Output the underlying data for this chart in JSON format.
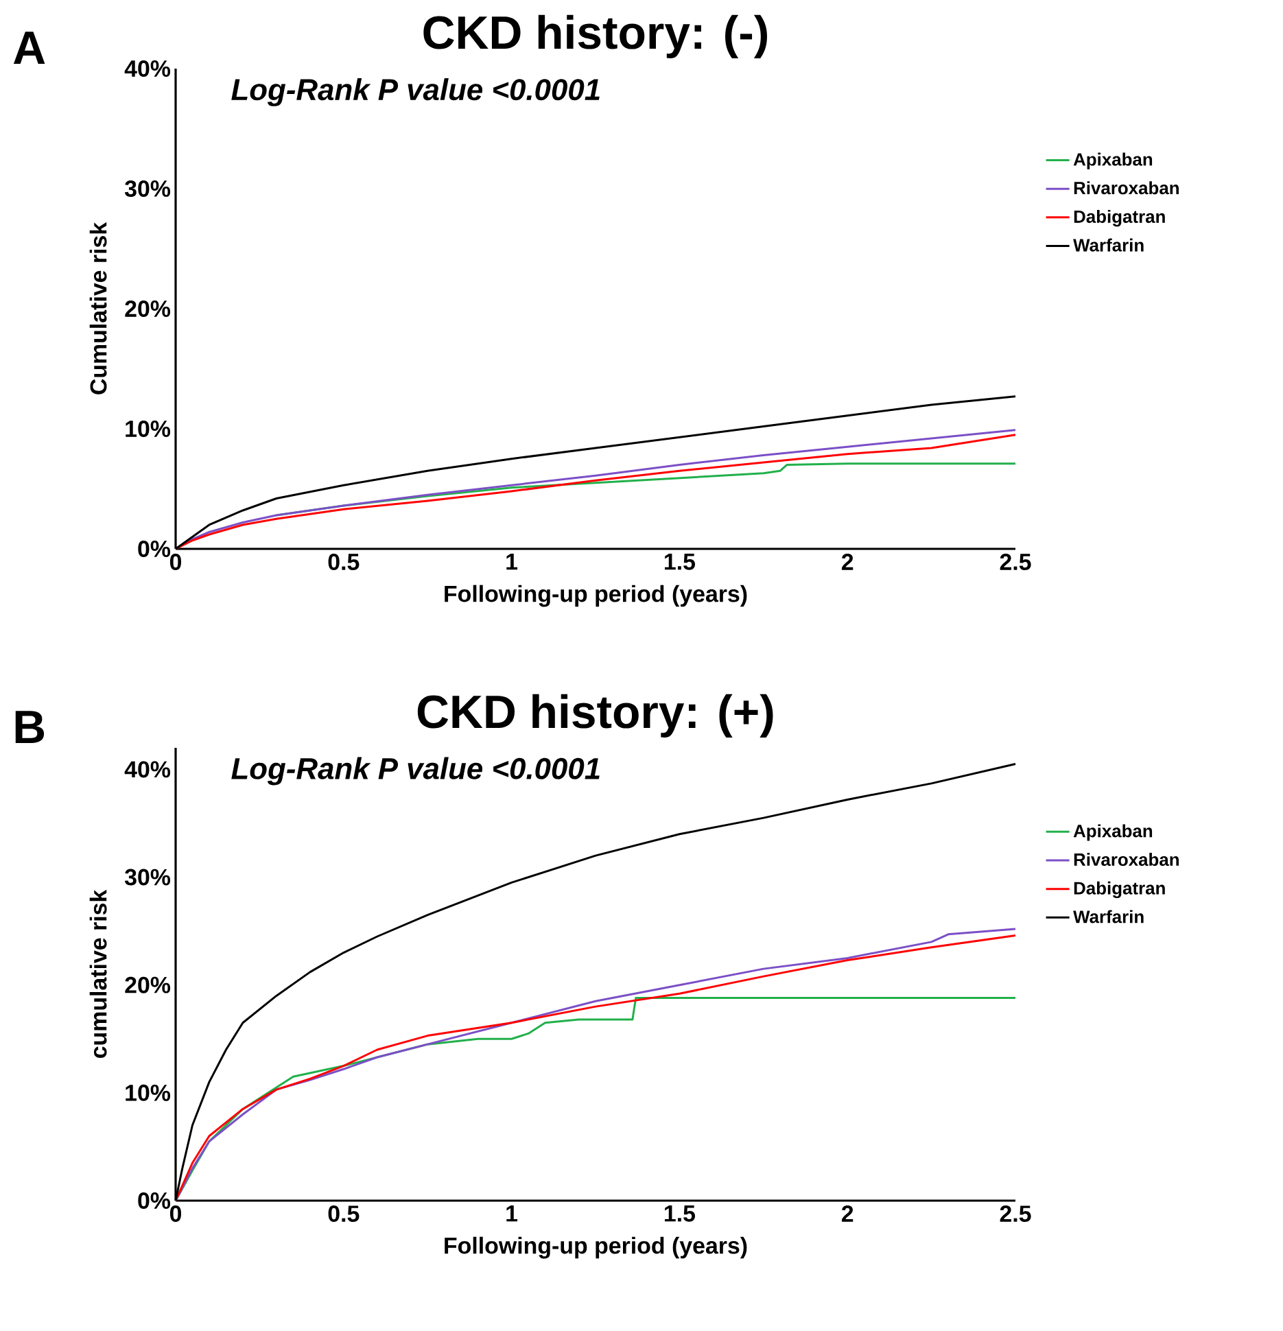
{
  "chart_data": [
    {
      "type": "line",
      "title": "CKD history: (-)",
      "xlabel": "Following-up period (years)",
      "ylabel": "Cumulative risk",
      "annotations": [
        "A",
        "Log-Rank P value <0.0001"
      ],
      "xlim": [
        0,
        2.5
      ],
      "xticks": [
        0,
        0.5,
        1,
        1.5,
        2,
        2.5
      ],
      "ylim": [
        0,
        40
      ],
      "yticks": [
        {
          "value": 0,
          "label": "0%"
        },
        {
          "value": 10,
          "label": "10%"
        },
        {
          "value": 20,
          "label": "20%"
        },
        {
          "value": 30,
          "label": "30%"
        },
        {
          "value": 40,
          "label": "40%"
        }
      ],
      "grid": false,
      "legend": "right",
      "marker": "none",
      "line_style": "solid",
      "series": [
        {
          "name": "Apixaban",
          "color": "#22b04b",
          "x": [
            0.3,
            0.5,
            0.75,
            1,
            1.25,
            1.5,
            1.75,
            1.8,
            1.82,
            2,
            2.5
          ],
          "values": [
            2.8,
            3.6,
            4.4,
            5.1,
            5.5,
            5.9,
            6.3,
            6.5,
            7,
            7.1,
            7.1
          ]
        },
        {
          "name": "Rivaroxaban",
          "color": "#7b4fc7",
          "x": [
            0,
            0.05,
            0.1,
            0.2,
            0.3,
            0.5,
            0.75,
            1,
            1.25,
            1.5,
            1.75,
            2,
            2.25,
            2.5
          ],
          "values": [
            0,
            0.8,
            1.4,
            2.2,
            2.8,
            3.6,
            4.5,
            5.3,
            6.1,
            7,
            7.8,
            8.5,
            9.2,
            9.9
          ]
        },
        {
          "name": "Dabigatran",
          "color": "#ff0000",
          "x": [
            0,
            0.05,
            0.1,
            0.2,
            0.3,
            0.5,
            0.75,
            1,
            1.25,
            1.5,
            1.75,
            2,
            2.25,
            2.5
          ],
          "values": [
            0,
            0.7,
            1.2,
            2,
            2.5,
            3.3,
            4,
            4.8,
            5.7,
            6.5,
            7.2,
            7.9,
            8.4,
            9.5
          ]
        },
        {
          "name": "Warfarin",
          "color": "#000000",
          "x": [
            0,
            0.05,
            0.1,
            0.2,
            0.3,
            0.5,
            0.75,
            1,
            1.25,
            1.5,
            1.75,
            2,
            2.25,
            2.5
          ],
          "values": [
            0,
            1,
            2,
            3.2,
            4.2,
            5.3,
            6.5,
            7.5,
            8.4,
            9.3,
            10.2,
            11.1,
            12,
            12.7
          ]
        }
      ]
    },
    {
      "type": "line",
      "title": "CKD history: (+)",
      "xlabel": "Following-up period (years)",
      "ylabel": "cumulative risk",
      "annotations": [
        "B",
        "Log-Rank P value <0.0001"
      ],
      "xlim": [
        0,
        2.5
      ],
      "xticks": [
        0,
        0.5,
        1,
        1.5,
        2,
        2.5
      ],
      "ylim": [
        0,
        42
      ],
      "yticks": [
        {
          "value": 0,
          "label": "0%"
        },
        {
          "value": 10,
          "label": "10%"
        },
        {
          "value": 20,
          "label": "20%"
        },
        {
          "value": 30,
          "label": "30%"
        },
        {
          "value": 40,
          "label": "40%"
        }
      ],
      "grid": false,
      "legend": "right",
      "marker": "none",
      "line_style": "solid",
      "series": [
        {
          "name": "Apixaban",
          "color": "#22b04b",
          "x": [
            0,
            0.05,
            0.1,
            0.2,
            0.3,
            0.35,
            0.5,
            0.75,
            0.9,
            1,
            1.05,
            1.1,
            1.2,
            1.36,
            1.37,
            2.5
          ],
          "values": [
            0,
            2.8,
            5.5,
            8.5,
            10.5,
            11.5,
            12.5,
            14.5,
            15,
            15,
            15.5,
            16.5,
            16.8,
            16.8,
            18.8,
            18.8
          ]
        },
        {
          "name": "Rivaroxaban",
          "color": "#7b4fc7",
          "x": [
            0,
            0.05,
            0.1,
            0.2,
            0.3,
            0.4,
            0.5,
            0.6,
            0.75,
            1,
            1.25,
            1.5,
            1.75,
            2,
            2.25,
            2.3,
            2.5
          ],
          "values": [
            0,
            3,
            5.5,
            8,
            10.3,
            11.2,
            12.2,
            13.3,
            14.5,
            16.5,
            18.5,
            20,
            21.5,
            22.5,
            24,
            24.7,
            25.2
          ]
        },
        {
          "name": "Dabigatran",
          "color": "#ff0000",
          "x": [
            0,
            0.05,
            0.1,
            0.2,
            0.3,
            0.4,
            0.5,
            0.6,
            0.75,
            1,
            1.25,
            1.5,
            1.75,
            2,
            2.25,
            2.5
          ],
          "values": [
            0,
            3.5,
            6,
            8.5,
            10.3,
            11.3,
            12.5,
            14,
            15.3,
            16.5,
            18,
            19.2,
            20.8,
            22.3,
            23.5,
            24.6
          ]
        },
        {
          "name": "Warfarin",
          "color": "#000000",
          "x": [
            0,
            0.02,
            0.05,
            0.1,
            0.15,
            0.2,
            0.3,
            0.4,
            0.5,
            0.6,
            0.75,
            1,
            1.25,
            1.5,
            1.75,
            2,
            2.25,
            2.5
          ],
          "values": [
            0,
            3,
            7,
            11,
            14,
            16.5,
            19,
            21.2,
            23,
            24.5,
            26.5,
            29.5,
            32,
            34,
            35.5,
            37.2,
            38.7,
            40.5
          ]
        }
      ]
    }
  ]
}
